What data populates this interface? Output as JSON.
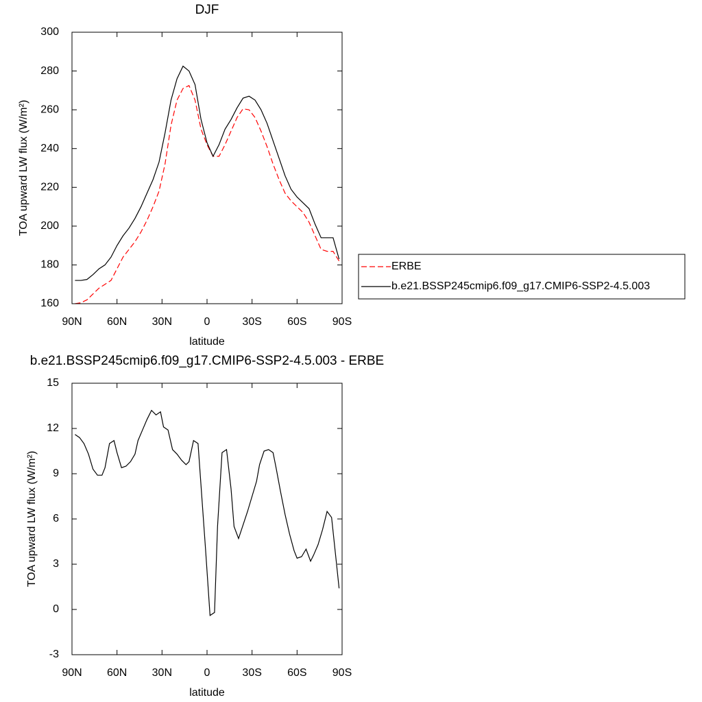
{
  "chart_data": [
    {
      "type": "line",
      "title": "DJF",
      "xlabel": "latitude",
      "ylabel": "TOA upward LW flux (W/m²)",
      "x": [
        88,
        84,
        80,
        76,
        72,
        68,
        64,
        60,
        56,
        52,
        48,
        44,
        40,
        36,
        32,
        28,
        24,
        20,
        16,
        12,
        8,
        4,
        0,
        -4,
        -8,
        -12,
        -16,
        -20,
        -24,
        -28,
        -32,
        -36,
        -40,
        -44,
        -48,
        -52,
        -56,
        -60,
        -64,
        -68,
        -72,
        -76,
        -80,
        -84,
        -88
      ],
      "series": [
        {
          "name": "ERBE",
          "color": "#ff0000",
          "dashed": true,
          "values": [
            160,
            160.5,
            162,
            165,
            168,
            170,
            172,
            178,
            184,
            188,
            192,
            197,
            203,
            210,
            218,
            232,
            252,
            265,
            271,
            272.5,
            265,
            250,
            242,
            236,
            236,
            242,
            249,
            256,
            260.5,
            260,
            256,
            249,
            241,
            232,
            224,
            217,
            213,
            210,
            207,
            202,
            195,
            188,
            187,
            187,
            182
          ]
        },
        {
          "name": "b.e21.BSSP245cmip6.f09_g17.CMIP6-SSP2-4.5.003",
          "color": "#000000",
          "dashed": false,
          "values": [
            172,
            172,
            172.5,
            175,
            178,
            180,
            184,
            190,
            195,
            199,
            204,
            210,
            217,
            224,
            233,
            248,
            265,
            276,
            282.5,
            280,
            273,
            255,
            243,
            236,
            242,
            250,
            255,
            261,
            266,
            267,
            265,
            260,
            253,
            244,
            235,
            226,
            219,
            215,
            212,
            209,
            201,
            194,
            194,
            194,
            183
          ]
        }
      ],
      "xlim": [
        90,
        -90
      ],
      "xticks": [
        {
          "value": 90,
          "label": "90N"
        },
        {
          "value": 60,
          "label": "60N"
        },
        {
          "value": 30,
          "label": "30N"
        },
        0,
        {
          "value": -30,
          "label": "30S"
        },
        {
          "value": -60,
          "label": "60S"
        },
        {
          "value": -90,
          "label": "90S"
        }
      ],
      "ylim": [
        160,
        300
      ],
      "yticks": [
        160,
        180,
        200,
        220,
        240,
        260,
        280,
        300
      ],
      "legend": "outside-right"
    },
    {
      "type": "line",
      "title": "b.e21.BSSP245cmip6.f09_g17.CMIP6-SSP2-4.5.003 - ERBE",
      "xlabel": "latitude",
      "ylabel": "TOA upward LW flux (W/m²)",
      "x": [
        88,
        85,
        82,
        79,
        76,
        73,
        70,
        68,
        65,
        62,
        60,
        57,
        54,
        51,
        48,
        46,
        43,
        40,
        37,
        34,
        31,
        29,
        26,
        23,
        20,
        17,
        14,
        12,
        9,
        6,
        4,
        1,
        -2,
        -5,
        -7,
        -10,
        -13,
        -16,
        -18,
        -21,
        -24,
        -27,
        -30,
        -33,
        -35,
        -38,
        -41,
        -44,
        -46,
        -49,
        -52,
        -55,
        -58,
        -60,
        -63,
        -66,
        -69,
        -71,
        -74,
        -77,
        -80,
        -83,
        -86,
        -88
      ],
      "values": [
        11.6,
        11.4,
        11,
        10.3,
        9.3,
        8.9,
        8.9,
        9.4,
        11,
        11.2,
        10.4,
        9.4,
        9.5,
        9.8,
        10.3,
        11.2,
        11.9,
        12.6,
        13.2,
        12.9,
        13.1,
        12.1,
        11.9,
        10.6,
        10.3,
        9.9,
        9.6,
        9.8,
        11.2,
        11,
        8.2,
        4,
        -0.4,
        -0.2,
        5.5,
        10.4,
        10.6,
        8,
        5.5,
        4.7,
        5.6,
        6.5,
        7.5,
        8.5,
        9.6,
        10.5,
        10.6,
        10.4,
        9.4,
        7.8,
        6.3,
        5,
        3.9,
        3.4,
        3.5,
        4,
        3.2,
        3.6,
        4.3,
        5.3,
        6.5,
        6.1,
        3.3,
        1.4
      ],
      "color": "#000000",
      "xlim": [
        90,
        -90
      ],
      "xticks": [
        {
          "value": 90,
          "label": "90N"
        },
        {
          "value": 60,
          "label": "60N"
        },
        {
          "value": 30,
          "label": "30N"
        },
        0,
        {
          "value": -30,
          "label": "30S"
        },
        {
          "value": -60,
          "label": "60S"
        },
        {
          "value": -90,
          "label": "90S"
        }
      ],
      "ylim": [
        -3,
        15
      ],
      "yticks": [
        -3,
        0,
        3,
        6,
        9,
        12,
        15
      ]
    }
  ]
}
